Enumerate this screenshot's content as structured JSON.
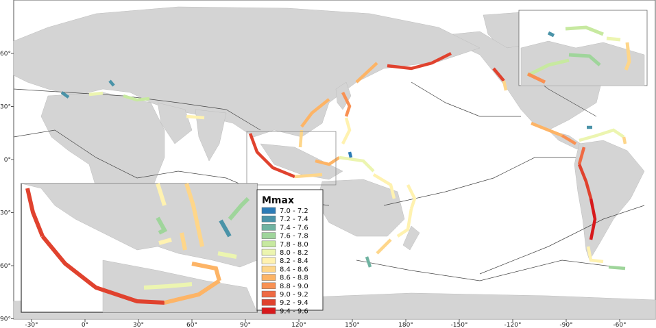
{
  "legend": {
    "title": "Mmax",
    "classes": [
      {
        "label": "7.0 - 7.2",
        "color": "#2c7bb6"
      },
      {
        "label": "7.2 - 7.4",
        "color": "#4a93a8"
      },
      {
        "label": "7.4 - 7.6",
        "color": "#6fb3a1"
      },
      {
        "label": "7.6 - 7.8",
        "color": "#9fd59b"
      },
      {
        "label": "7.8 - 8.0",
        "color": "#c7e9a0"
      },
      {
        "label": "8.0 - 8.2",
        "color": "#ecf5b0"
      },
      {
        "label": "8.2 - 8.4",
        "color": "#fff2b0"
      },
      {
        "label": "8.4 - 8.6",
        "color": "#fed68a"
      },
      {
        "label": "8.6 - 8.8",
        "color": "#fdb466"
      },
      {
        "label": "8.8 - 9.0",
        "color": "#f99153"
      },
      {
        "label": "9.0 - 9.2",
        "color": "#ef6a43"
      },
      {
        "label": "9.2 - 9.4",
        "color": "#e0422e"
      },
      {
        "label": "9.4 - 9.6",
        "color": "#d7191c"
      }
    ]
  },
  "axes": {
    "longitude_ticks": [
      "-30°",
      "0°",
      "30°",
      "60°",
      "90°",
      "120°",
      "150°",
      "180°",
      "-150°",
      "-120°",
      "-90°",
      "-60°"
    ],
    "latitude_ticks": [
      "60°",
      "30°",
      "0°",
      "-30°",
      "-60°",
      "-90°"
    ]
  },
  "colors": {
    "land": "#d4d4d4",
    "ocean": "#ffffff",
    "plate_boundary": "#444444",
    "frame": "#555555"
  }
}
